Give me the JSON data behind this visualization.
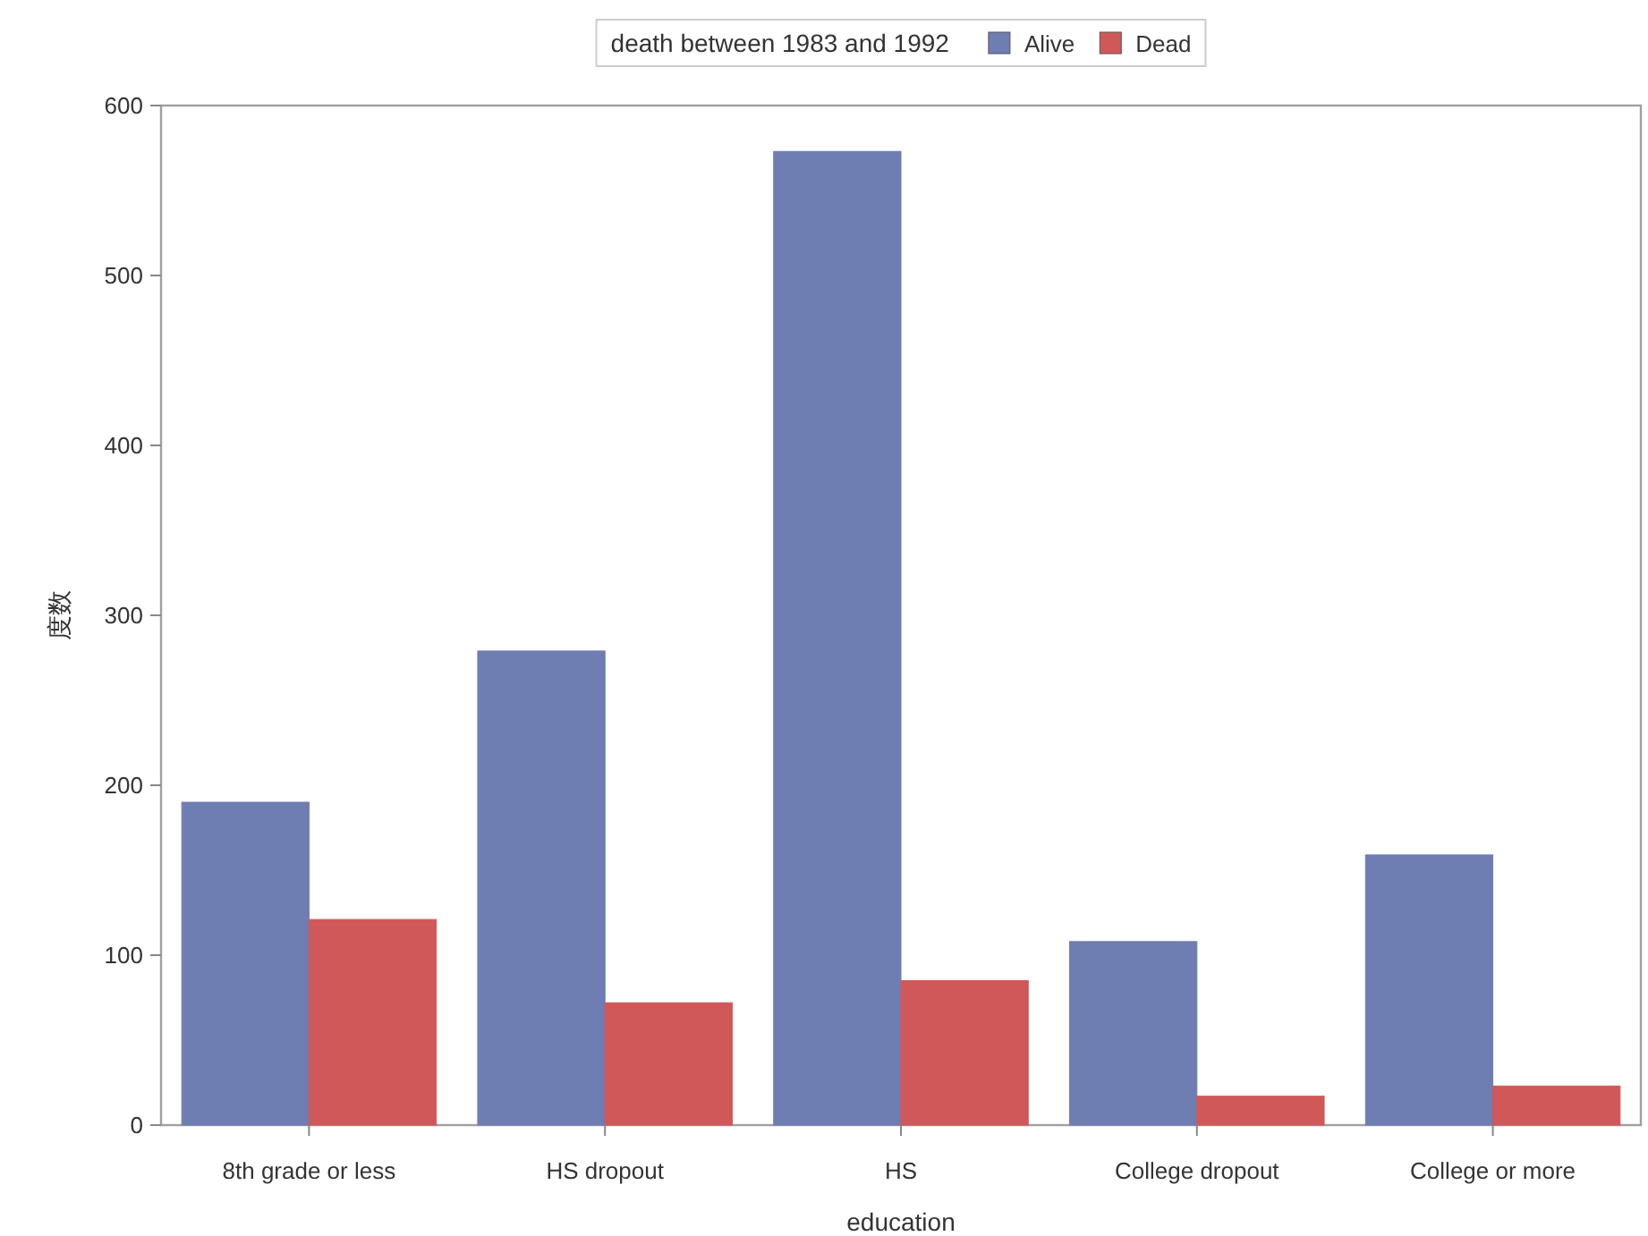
{
  "chart_data": {
    "type": "bar",
    "xlabel": "education",
    "ylabel": "度数",
    "legend_title": "death between 1983 and 1992",
    "legend": "top",
    "categories": [
      "8th grade or less",
      "HS dropout",
      "HS",
      "College dropout",
      "College or more"
    ],
    "series": [
      {
        "name": "Alive",
        "color": "#6e7db2",
        "values": [
          190,
          279,
          573,
          108,
          159
        ]
      },
      {
        "name": "Dead",
        "color": "#d05858",
        "values": [
          121,
          72,
          85,
          17,
          23
        ]
      }
    ],
    "ylim": [
      0,
      600
    ],
    "yticks": [
      0,
      100,
      200,
      300,
      400,
      500,
      600
    ]
  }
}
